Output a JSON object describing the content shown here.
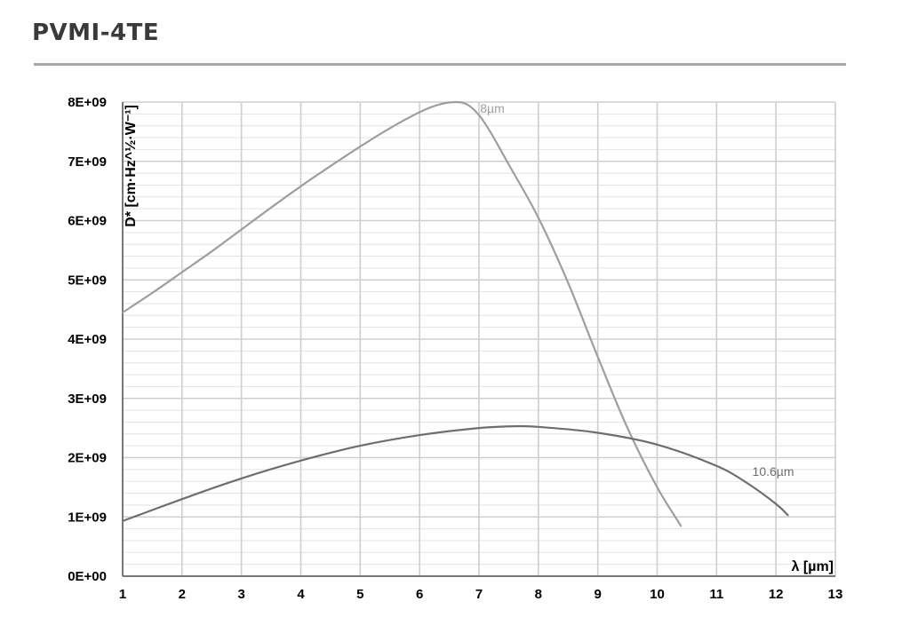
{
  "page": {
    "title": "PVMI-4TE"
  },
  "chart_data": {
    "type": "line",
    "title": "",
    "xlabel": "λ [µm]",
    "ylabel": "D* [cm·Hz^½·W⁻¹]",
    "xlim": [
      1,
      13
    ],
    "ylim": [
      0,
      8000000000
    ],
    "x_ticks": [
      "1",
      "2",
      "3",
      "4",
      "5",
      "6",
      "7",
      "8",
      "9",
      "10",
      "11",
      "12",
      "13"
    ],
    "y_ticks": [
      "0E+00",
      "1E+09",
      "2E+09",
      "3E+09",
      "4E+09",
      "5E+09",
      "6E+09",
      "7E+09",
      "8E+09"
    ],
    "grid": true,
    "series": [
      {
        "name": "8µm",
        "color": "#9e9e9e",
        "x": [
          1,
          1.5,
          2,
          2.5,
          3,
          3.5,
          4,
          4.5,
          5,
          5.5,
          6,
          6.3,
          6.6,
          6.8,
          7,
          7.2,
          7.5,
          8,
          8.5,
          9,
          9.5,
          10,
          10.4
        ],
        "y": [
          4450000000,
          4780000000,
          5130000000,
          5480000000,
          5850000000,
          6220000000,
          6580000000,
          6920000000,
          7250000000,
          7560000000,
          7830000000,
          7950000000,
          8000000000,
          7960000000,
          7780000000,
          7480000000,
          6950000000,
          6050000000,
          4950000000,
          3700000000,
          2500000000,
          1500000000,
          850000000
        ]
      },
      {
        "name": "10.6µm",
        "color": "#6e6e6e",
        "x": [
          1,
          2,
          3,
          4,
          5,
          6,
          7,
          7.6,
          8,
          9,
          10,
          11,
          11.5,
          12,
          12.2
        ],
        "y": [
          930000000,
          1300000000,
          1650000000,
          1950000000,
          2200000000,
          2380000000,
          2500000000,
          2530000000,
          2520000000,
          2420000000,
          2220000000,
          1860000000,
          1580000000,
          1220000000,
          1030000000
        ]
      }
    ]
  }
}
